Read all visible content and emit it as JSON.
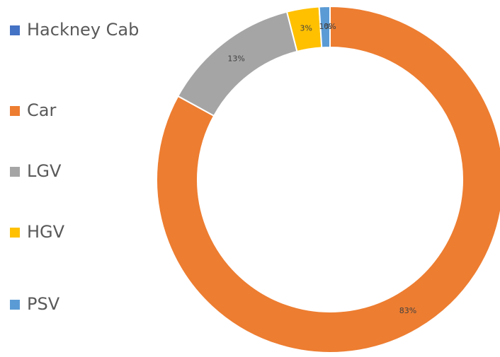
{
  "chart_data": {
    "type": "donut",
    "categories": [
      "Hackney Cab",
      "Car",
      "LGV",
      "HGV",
      "PSV"
    ],
    "values": [
      0,
      83,
      13,
      3,
      1
    ],
    "value_labels": [
      "0%",
      "83%",
      "13%",
      "3%",
      "1%"
    ],
    "colors": [
      "#4472c4",
      "#ed7d31",
      "#a5a5a5",
      "#ffc000",
      "#5b9bd5"
    ],
    "legend": "left"
  }
}
